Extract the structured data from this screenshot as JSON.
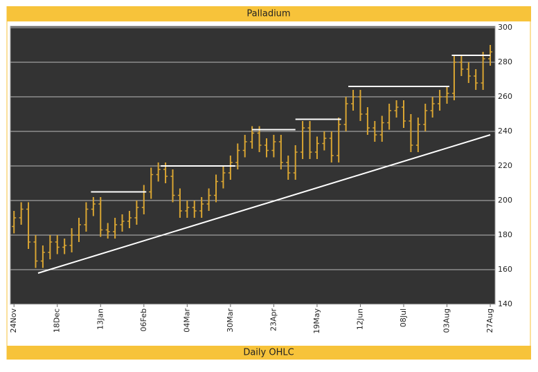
{
  "chart_data": {
    "type": "ohlc",
    "title": "Palladium",
    "subtitle": "Daily OHLC",
    "color": "#d9a532",
    "grid": true,
    "x": [
      0,
      3,
      6,
      9,
      12,
      15,
      18,
      21,
      24,
      27,
      30,
      33,
      36,
      39,
      42,
      45,
      48,
      51,
      54,
      57,
      60,
      63,
      66,
      69,
      72,
      75,
      78,
      81,
      84,
      87,
      90,
      93,
      96,
      99,
      102,
      105,
      108,
      111,
      114,
      117,
      120,
      123,
      126,
      129,
      132,
      135,
      138,
      141,
      144,
      147,
      150,
      153,
      156,
      159,
      162,
      165,
      168,
      171,
      174,
      177,
      180,
      183,
      186,
      189,
      192,
      195,
      198
    ],
    "open": [
      185,
      190,
      195,
      176,
      165,
      170,
      176,
      173,
      174,
      180,
      186,
      195,
      198,
      183,
      182,
      186,
      188,
      190,
      196,
      205,
      215,
      218,
      214,
      203,
      194,
      196,
      194,
      198,
      203,
      211,
      216,
      222,
      229,
      234,
      239,
      232,
      229,
      234,
      222,
      216,
      228,
      242,
      228,
      233,
      236,
      226,
      244,
      256,
      260,
      250,
      242,
      238,
      245,
      252,
      254,
      246,
      232,
      244,
      252,
      256,
      260,
      262,
      280,
      276,
      272,
      268,
      282
    ],
    "high": [
      194,
      199,
      199,
      180,
      174,
      180,
      180,
      178,
      184,
      190,
      199,
      202,
      202,
      187,
      190,
      192,
      194,
      200,
      209,
      219,
      222,
      222,
      218,
      207,
      200,
      200,
      202,
      207,
      215,
      220,
      226,
      233,
      238,
      243,
      243,
      236,
      238,
      238,
      226,
      232,
      246,
      246,
      237,
      240,
      240,
      248,
      260,
      264,
      264,
      254,
      246,
      249,
      256,
      258,
      258,
      250,
      248,
      256,
      260,
      264,
      266,
      284,
      284,
      280,
      276,
      286,
      290
    ],
    "low": [
      181,
      186,
      172,
      161,
      161,
      166,
      169,
      169,
      170,
      176,
      182,
      191,
      179,
      178,
      178,
      182,
      184,
      186,
      192,
      201,
      211,
      210,
      199,
      190,
      190,
      190,
      190,
      194,
      199,
      207,
      212,
      218,
      225,
      230,
      228,
      225,
      225,
      218,
      212,
      212,
      224,
      224,
      224,
      229,
      222,
      222,
      240,
      252,
      246,
      238,
      234,
      234,
      241,
      248,
      242,
      228,
      228,
      240,
      248,
      252,
      256,
      258,
      272,
      268,
      264,
      264,
      278
    ],
    "close": [
      190,
      195,
      176,
      165,
      170,
      176,
      173,
      174,
      180,
      186,
      195,
      198,
      183,
      182,
      186,
      188,
      190,
      196,
      205,
      215,
      218,
      214,
      203,
      194,
      196,
      194,
      198,
      203,
      211,
      216,
      222,
      229,
      234,
      239,
      232,
      229,
      234,
      222,
      216,
      228,
      242,
      228,
      233,
      236,
      226,
      244,
      256,
      260,
      250,
      242,
      238,
      245,
      252,
      254,
      246,
      232,
      244,
      252,
      256,
      260,
      262,
      280,
      276,
      272,
      268,
      282,
      286
    ],
    "lines": [
      {
        "x": [
          10,
          198
        ],
        "y": [
          158,
          238
        ]
      },
      {
        "x": [
          32,
          55
        ],
        "y": [
          205,
          205
        ]
      },
      {
        "x": [
          61,
          92
        ],
        "y": [
          220,
          220
        ]
      },
      {
        "x": [
          99,
          117
        ],
        "y": [
          241,
          241
        ]
      },
      {
        "x": [
          117,
          136
        ],
        "y": [
          247,
          247
        ]
      },
      {
        "x": [
          139,
          181
        ],
        "y": [
          266,
          266
        ]
      },
      {
        "x": [
          182,
          198
        ],
        "y": [
          284,
          284
        ]
      }
    ],
    "xlim": [
      -1.5,
      200
    ],
    "xticks": [
      {
        "value": 0,
        "label": "24Nov"
      },
      {
        "value": 18,
        "label": "18Dec"
      },
      {
        "value": 36,
        "label": "13Jan"
      },
      {
        "value": 54,
        "label": "06Feb"
      },
      {
        "value": 72,
        "label": "04Mar"
      },
      {
        "value": 90,
        "label": "30Mar"
      },
      {
        "value": 108,
        "label": "23Apr"
      },
      {
        "value": 126,
        "label": "19May"
      },
      {
        "value": 144,
        "label": "12Jun"
      },
      {
        "value": 162,
        "label": "08Jul"
      },
      {
        "value": 180,
        "label": "03Aug"
      },
      {
        "value": 198,
        "label": "27Aug"
      }
    ],
    "ylim": [
      140,
      300
    ],
    "yticks": [
      140,
      160,
      180,
      200,
      220,
      240,
      260,
      280,
      300
    ]
  }
}
